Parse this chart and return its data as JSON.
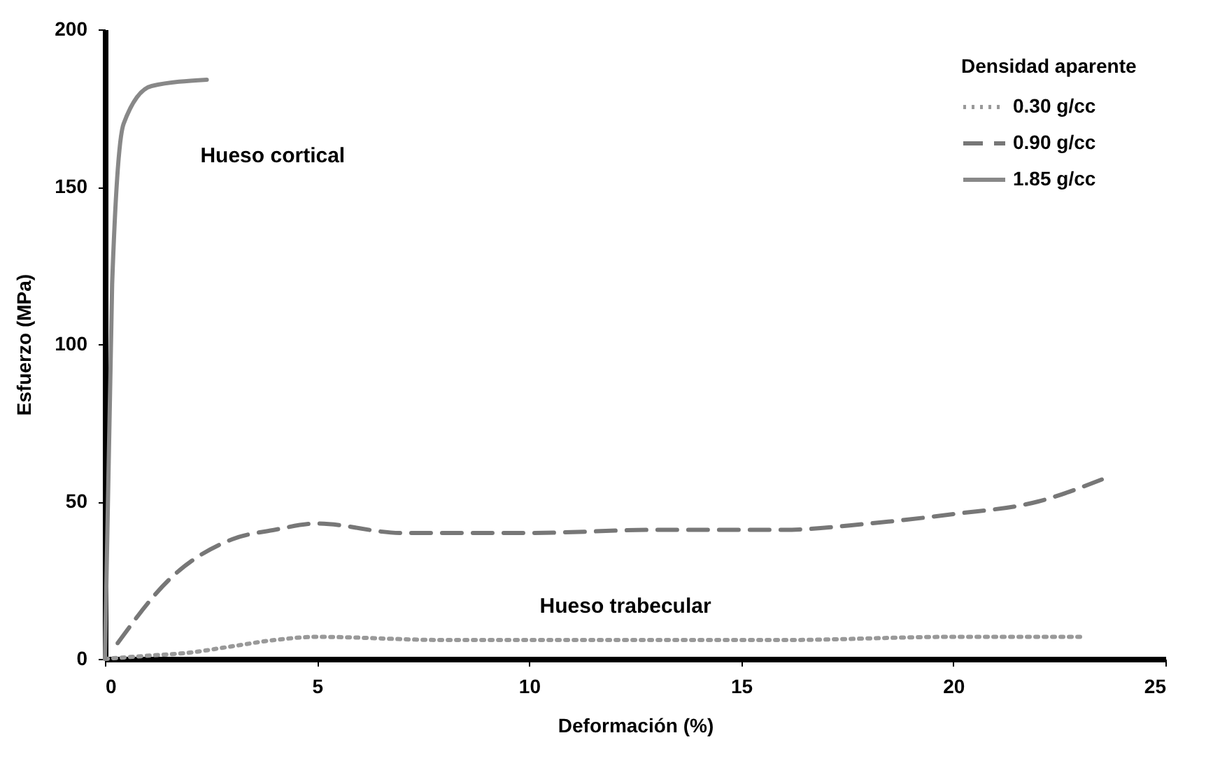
{
  "chart_data": {
    "type": "line",
    "xlabel": "Deformación (%)",
    "ylabel": "Esfuerzo (MPa)",
    "legend_title": "Densidad aparente",
    "xlim": [
      0,
      25
    ],
    "xticks": [
      0,
      5,
      10,
      15,
      20,
      25
    ],
    "ylim": [
      0,
      200
    ],
    "yticks": [
      0,
      50,
      100,
      150,
      200
    ],
    "grid": false,
    "legend": "top right",
    "series": [
      {
        "name": "0.30 g/cc",
        "color": "#999999",
        "line_style": "dotted",
        "x": [
          0,
          1,
          2,
          3,
          4,
          5,
          8,
          12,
          16,
          20,
          23
        ],
        "values": [
          0,
          1,
          2,
          4,
          6,
          7,
          6,
          6,
          6,
          7,
          7
        ]
      },
      {
        "name": "0.90 g/cc",
        "color": "#777777",
        "line_style": "dashed",
        "x": [
          0.3,
          1.5,
          3,
          4,
          5,
          7,
          10,
          13,
          16,
          18,
          20,
          22,
          23.5
        ],
        "values": [
          5,
          25,
          38,
          41,
          43,
          40,
          40,
          41,
          41,
          43,
          46,
          50,
          57
        ]
      },
      {
        "name": "1.85 g/cc",
        "color": "#888888",
        "line_style": "solid",
        "x": [
          0,
          0.17,
          0.44,
          1.1,
          2.4
        ],
        "values": [
          0,
          119,
          170,
          182,
          184
        ]
      }
    ],
    "annotations": [
      "Hueso cortical",
      "Hueso trabecular"
    ]
  }
}
